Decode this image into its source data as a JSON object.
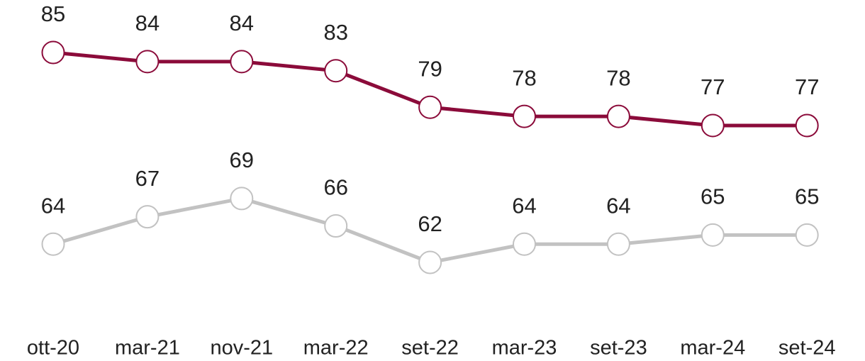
{
  "chart_data": {
    "type": "line",
    "categories": [
      "ott-20",
      "mar-21",
      "nov-21",
      "mar-22",
      "set-22",
      "mar-23",
      "set-23",
      "mar-24",
      "set-24"
    ],
    "series": [
      {
        "color": "#8b0b3a",
        "values": [
          85,
          84,
          84,
          83,
          79,
          78,
          78,
          77,
          77
        ]
      },
      {
        "color": "#c2c2c2",
        "values": [
          64,
          67,
          69,
          66,
          62,
          64,
          64,
          65,
          65
        ]
      }
    ]
  }
}
